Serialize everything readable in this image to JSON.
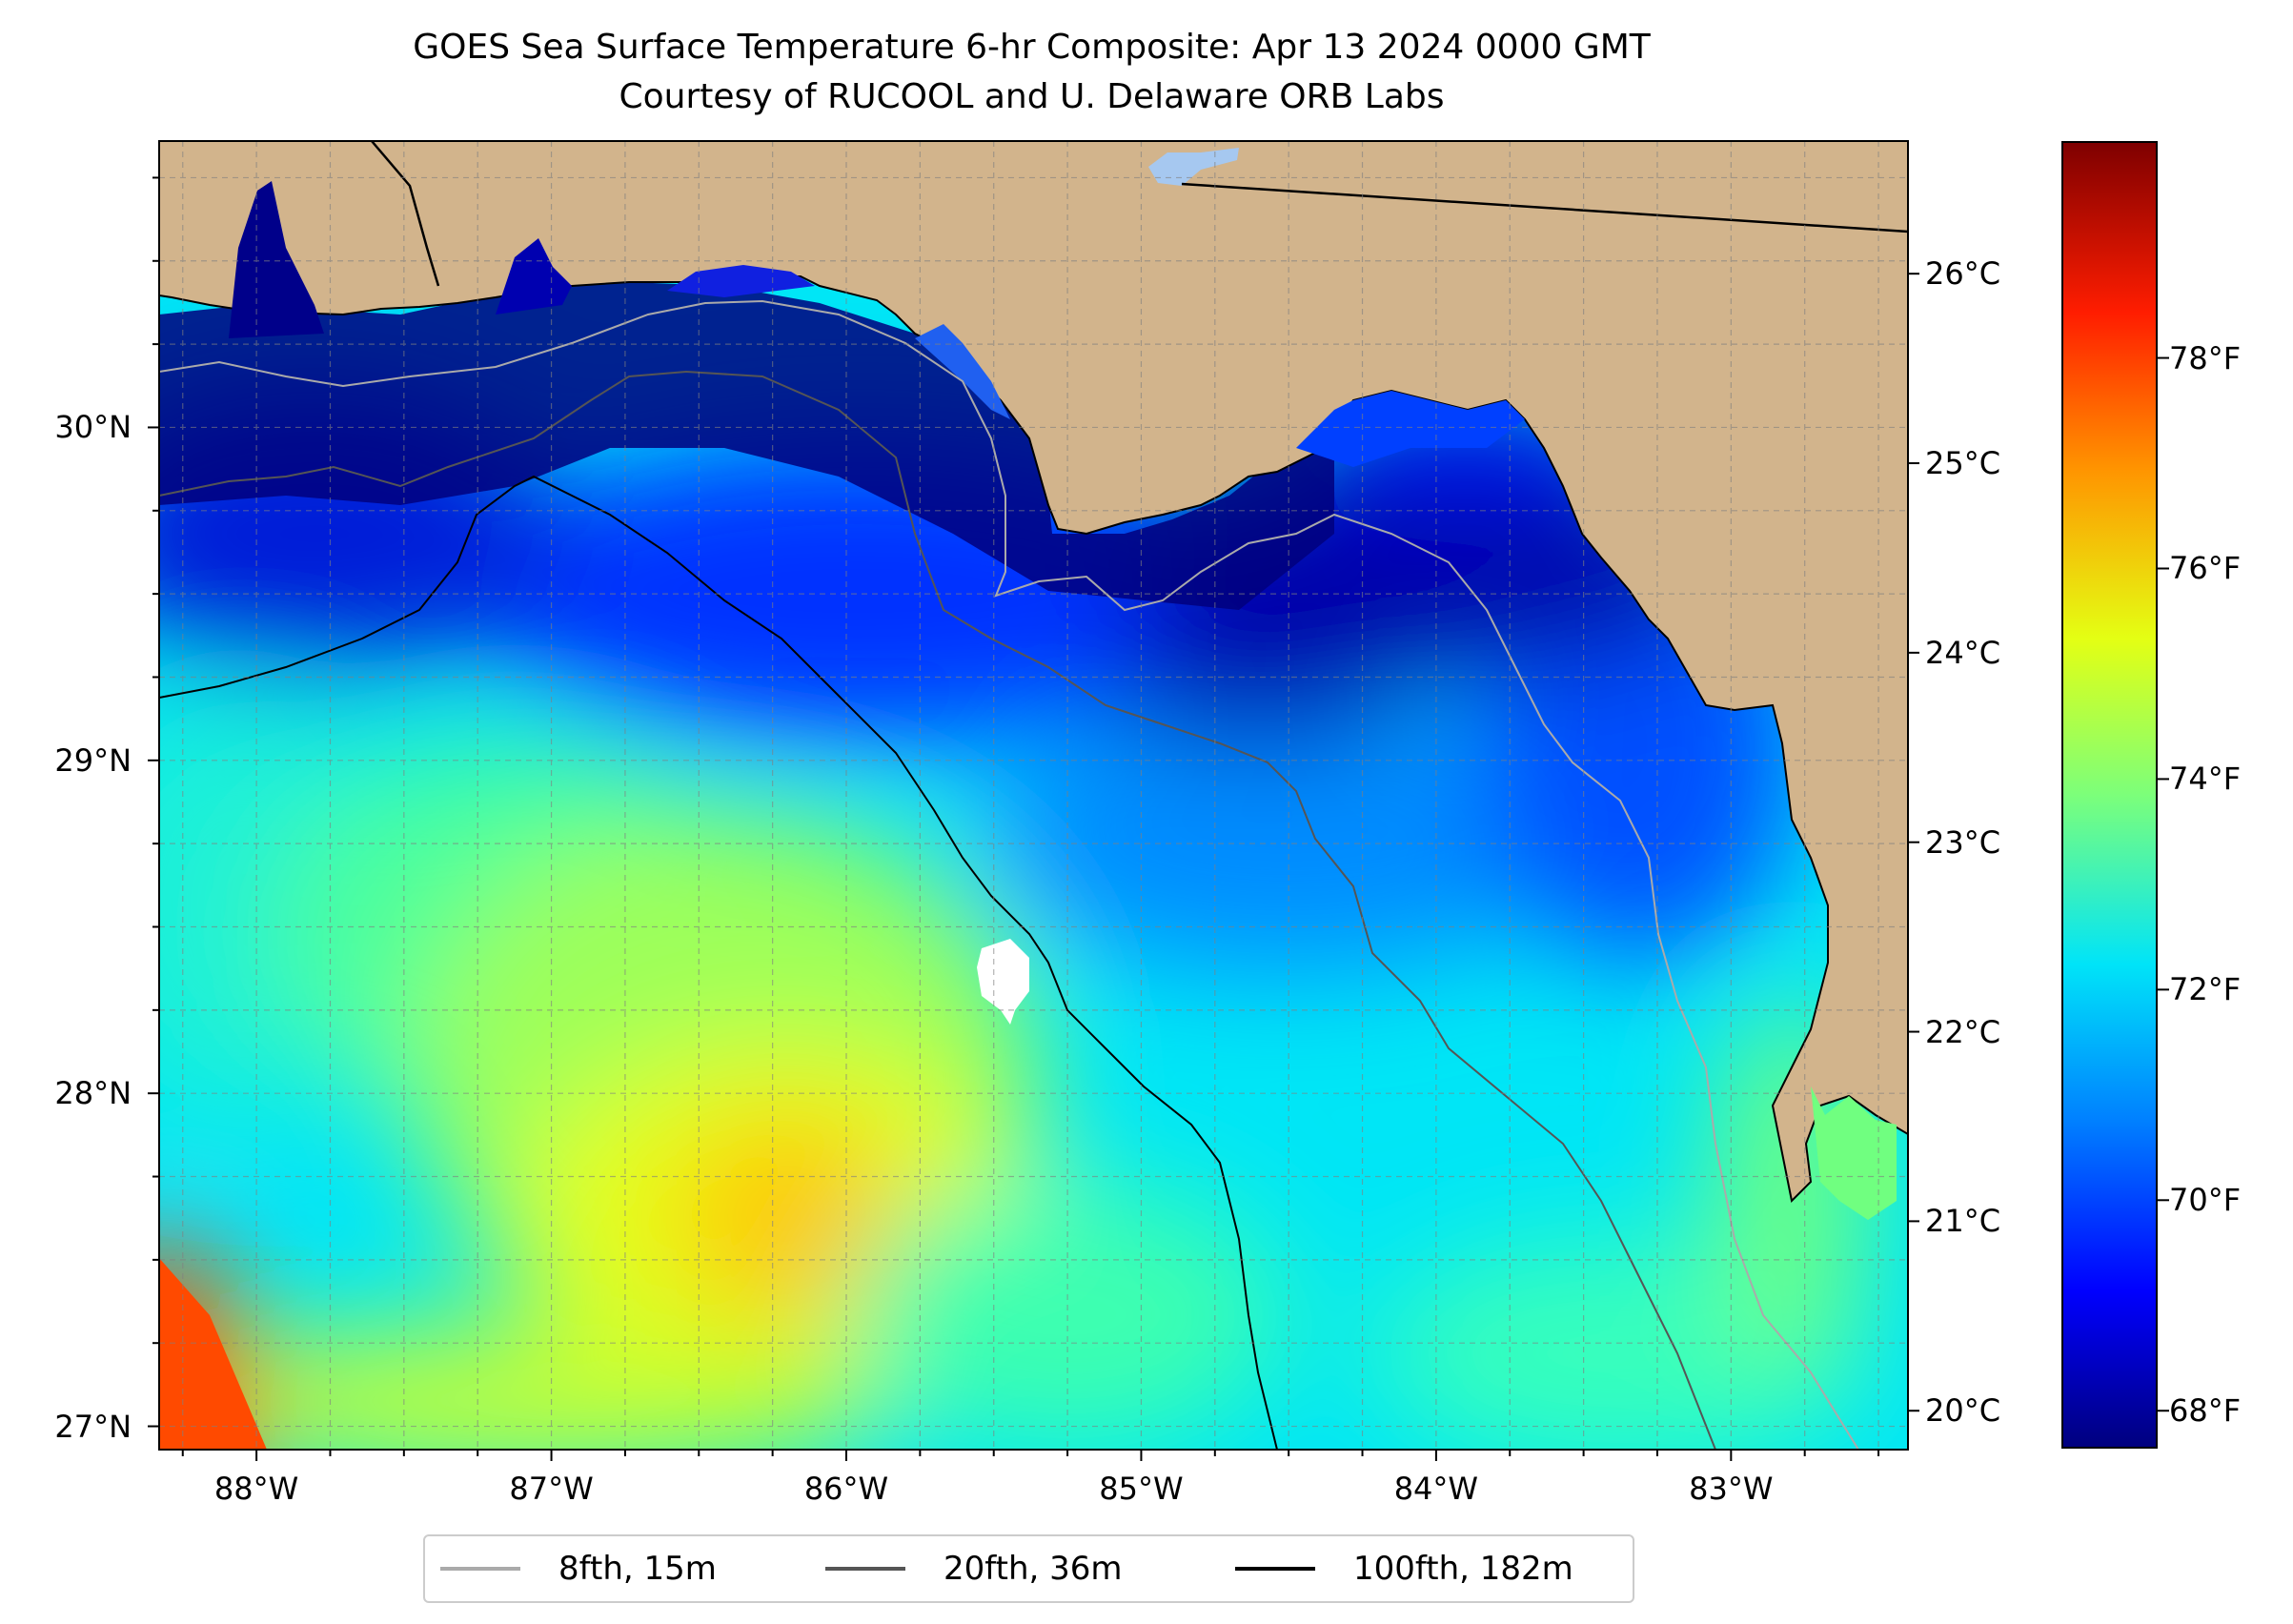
{
  "title": "GOES Sea Surface Temperature 6-hr Composite: Apr 13 2024 0000 GMT",
  "subtitle": "Courtesy of RUCOOL and U. Delaware ORB Labs",
  "map": {
    "lon_range": [
      -88.33,
      -82.4
    ],
    "lat_range": [
      26.93,
      30.86
    ],
    "land_color": "#d2b48c",
    "gridlines": "dashed grey",
    "lat_ticks": [
      {
        "value": 30,
        "label": "30°N"
      },
      {
        "value": 29,
        "label": "29°N"
      },
      {
        "value": 28,
        "label": "28°N"
      },
      {
        "value": 27,
        "label": "27°N"
      }
    ],
    "lon_ticks": [
      {
        "value": -88,
        "label": "88°W"
      },
      {
        "value": -87,
        "label": "87°W"
      },
      {
        "value": -86,
        "label": "86°W"
      },
      {
        "value": -85,
        "label": "85°W"
      },
      {
        "value": -84,
        "label": "84°W"
      },
      {
        "value": -83,
        "label": "83°W"
      }
    ]
  },
  "colorbar": {
    "colormap": "jet",
    "celsius_range": [
      19.8,
      26.7
    ],
    "celsius_ticks": [
      {
        "value": 26,
        "label": "26°C"
      },
      {
        "value": 25,
        "label": "25°C"
      },
      {
        "value": 24,
        "label": "24°C"
      },
      {
        "value": 23,
        "label": "23°C"
      },
      {
        "value": 22,
        "label": "22°C"
      },
      {
        "value": 21,
        "label": "21°C"
      },
      {
        "value": 20,
        "label": "20°C"
      }
    ],
    "fahrenheit_ticks": [
      {
        "value": 78,
        "label": "78°F"
      },
      {
        "value": 76,
        "label": "76°F"
      },
      {
        "value": 74,
        "label": "74°F"
      },
      {
        "value": 72,
        "label": "72°F"
      },
      {
        "value": 70,
        "label": "70°F"
      },
      {
        "value": 68,
        "label": "68°F"
      }
    ]
  },
  "legend": [
    {
      "label": "8fth, 15m",
      "color": "#aaaaaa"
    },
    {
      "label": "20fth, 36m",
      "color": "#555555"
    },
    {
      "label": "100fth, 182m",
      "color": "#000000"
    }
  ]
}
